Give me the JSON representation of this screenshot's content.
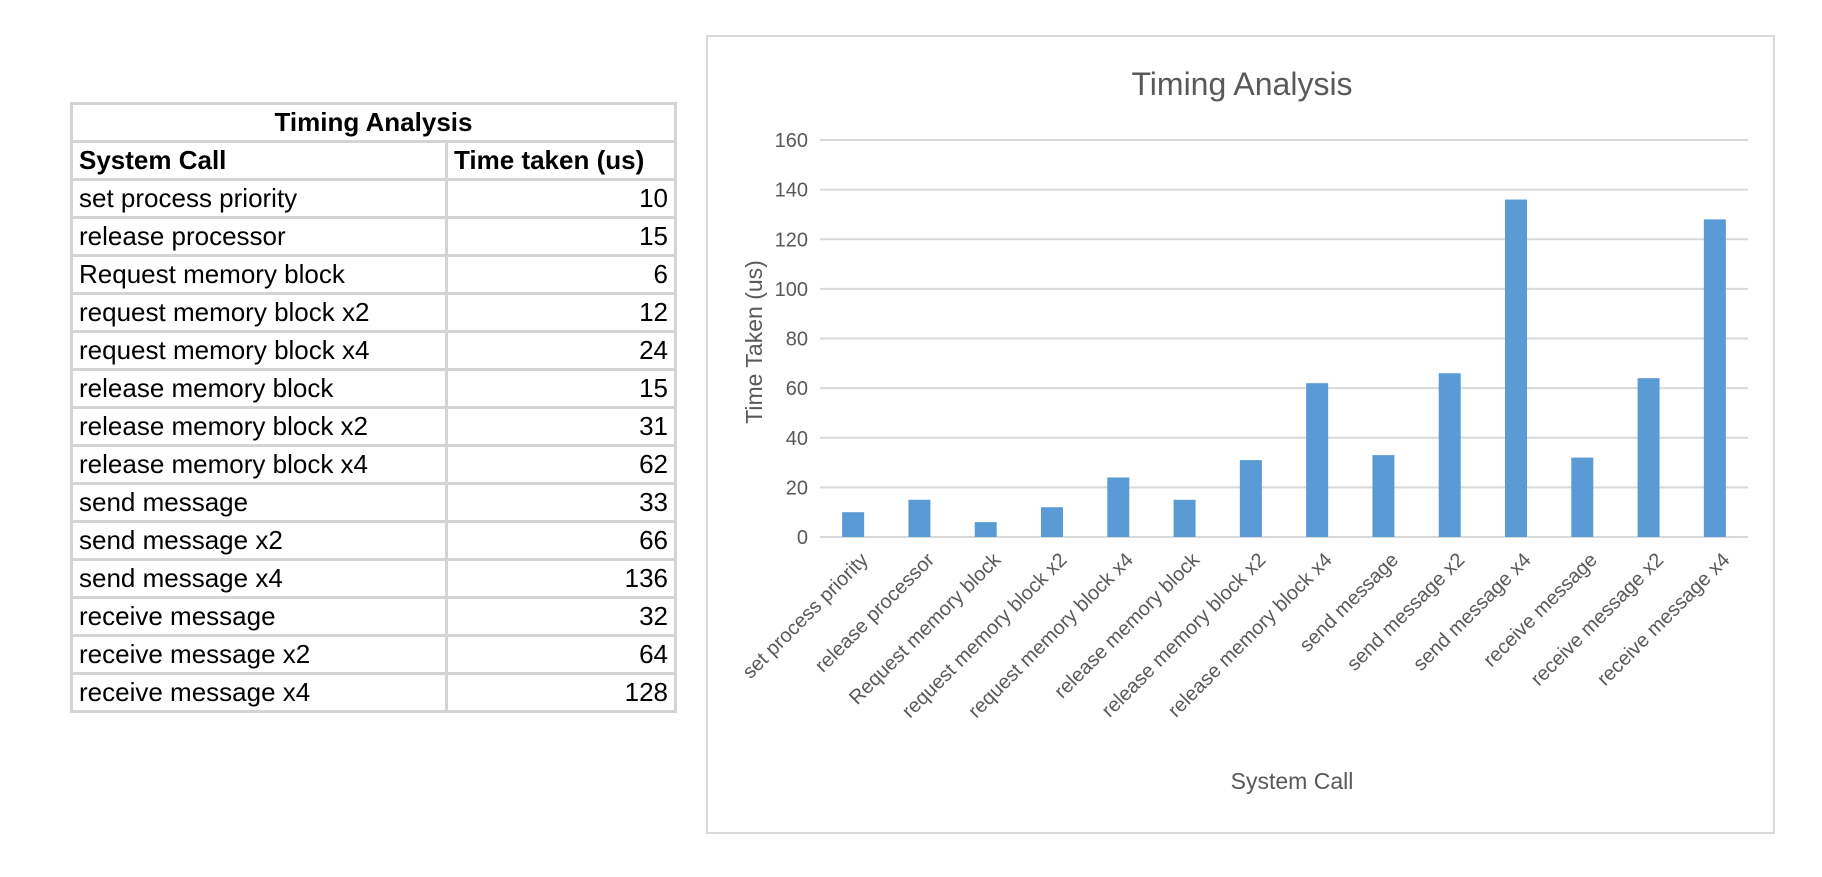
{
  "table": {
    "title": "Timing Analysis",
    "headers": [
      "System Call",
      "Time taken (us)"
    ],
    "rows": [
      [
        "set process priority",
        "10"
      ],
      [
        "release processor",
        "15"
      ],
      [
        "Request memory block",
        "6"
      ],
      [
        "request memory block x2",
        "12"
      ],
      [
        "request memory block x4",
        "24"
      ],
      [
        "release memory block",
        "15"
      ],
      [
        "release memory block x2",
        "31"
      ],
      [
        "release memory block x4",
        "62"
      ],
      [
        "send message",
        "33"
      ],
      [
        "send message x2",
        "66"
      ],
      [
        "send message x4",
        "136"
      ],
      [
        "receive message",
        "32"
      ],
      [
        "receive message x2",
        "64"
      ],
      [
        "receive message x4",
        "128"
      ]
    ]
  },
  "chart_data": {
    "type": "bar",
    "title": "Timing Analysis",
    "xlabel": "System Call",
    "ylabel": "Time Taken (us)",
    "ylim": [
      0,
      160
    ],
    "yticks": [
      0,
      20,
      40,
      60,
      80,
      100,
      120,
      140,
      160
    ],
    "grid": true,
    "categories": [
      "set process priority",
      "release processor",
      "Request memory block",
      "request memory block x2",
      "request memory block x4",
      "release memory block",
      "release memory block x2",
      "release memory block x4",
      "send message",
      "send message x2",
      "send message x4",
      "receive message",
      "receive message x2",
      "receive message x4"
    ],
    "values": [
      10,
      15,
      6,
      12,
      24,
      15,
      31,
      62,
      33,
      66,
      136,
      32,
      64,
      128
    ],
    "bar_color": "#5b9bd5",
    "grid_color": "#d9d9d9"
  }
}
